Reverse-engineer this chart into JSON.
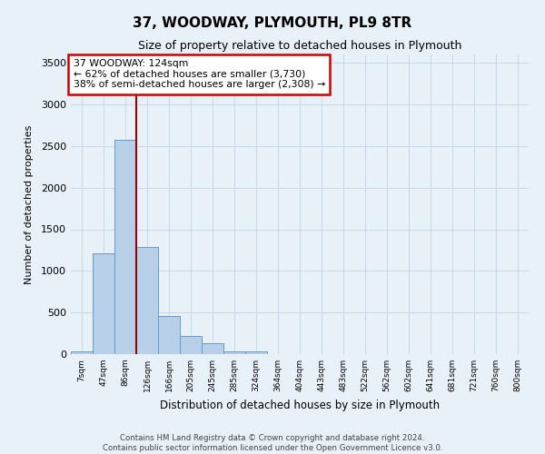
{
  "title": "37, WOODWAY, PLYMOUTH, PL9 8TR",
  "subtitle": "Size of property relative to detached houses in Plymouth",
  "xlabel": "Distribution of detached houses by size in Plymouth",
  "ylabel": "Number of detached properties",
  "categories": [
    "7sqm",
    "47sqm",
    "86sqm",
    "126sqm",
    "166sqm",
    "205sqm",
    "245sqm",
    "285sqm",
    "324sqm",
    "364sqm",
    "404sqm",
    "443sqm",
    "483sqm",
    "522sqm",
    "562sqm",
    "602sqm",
    "641sqm",
    "681sqm",
    "721sqm",
    "760sqm",
    "800sqm"
  ],
  "bar_values": [
    30,
    1210,
    2580,
    1290,
    460,
    215,
    130,
    30,
    30,
    0,
    0,
    0,
    0,
    0,
    0,
    0,
    0,
    0,
    0,
    0,
    0
  ],
  "bar_color": "#b8cfe8",
  "bar_edge_color": "#6699cc",
  "property_line_label": "37 WOODWAY: 124sqm",
  "annotation_line1": "← 62% of detached houses are smaller (3,730)",
  "annotation_line2": "38% of semi-detached houses are larger (2,308) →",
  "annotation_box_color": "#ffffff",
  "annotation_box_edge": "#cc0000",
  "vline_color": "#990000",
  "vline_x": 3.0,
  "ylim": [
    0,
    3600
  ],
  "yticks": [
    0,
    500,
    1000,
    1500,
    2000,
    2500,
    3000,
    3500
  ],
  "grid_color": "#c8d8e8",
  "background_color": "#e8f0f8",
  "footer1": "Contains HM Land Registry data © Crown copyright and database right 2024.",
  "footer2": "Contains public sector information licensed under the Open Government Licence v3.0."
}
